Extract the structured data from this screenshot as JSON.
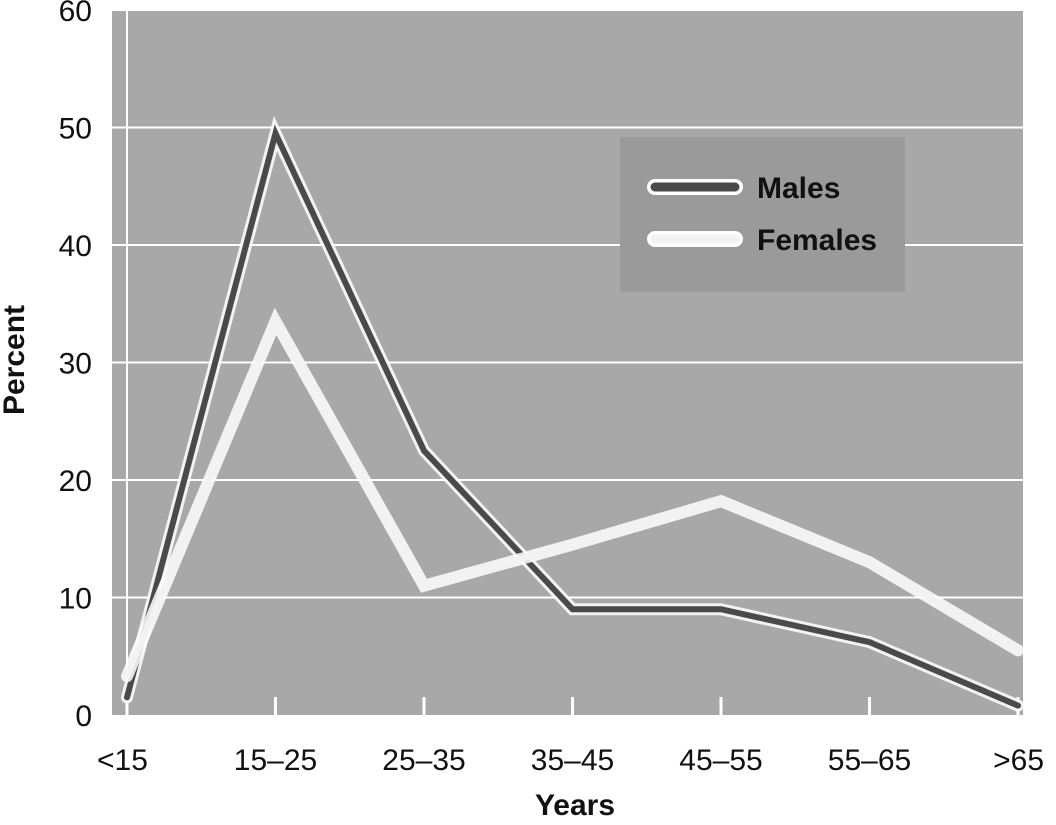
{
  "chart_data": {
    "type": "line",
    "title": "",
    "xlabel": "Years",
    "ylabel": "Percent",
    "categories": [
      "<15",
      "15–25",
      "25–35",
      "35–45",
      "45–55",
      "55–65",
      ">65"
    ],
    "ylim": [
      0,
      60
    ],
    "yticks": [
      0,
      10,
      20,
      30,
      40,
      50,
      60
    ],
    "grid": true,
    "legend_position": "top-right",
    "series": [
      {
        "name": "Males",
        "values": [
          1.5,
          49.5,
          22.5,
          9,
          9,
          6.2,
          0.8
        ],
        "color": "#4a4a4a"
      },
      {
        "name": "Females",
        "values": [
          3.3,
          33.5,
          11,
          14.5,
          18.2,
          13,
          5.5
        ],
        "color": "#f2f2f2"
      }
    ],
    "colors": {
      "plot_background": "#a8a8a8",
      "gridline": "#ffffff",
      "legend_background": "#9a9a9a",
      "line_halo": "#ffffff"
    }
  }
}
